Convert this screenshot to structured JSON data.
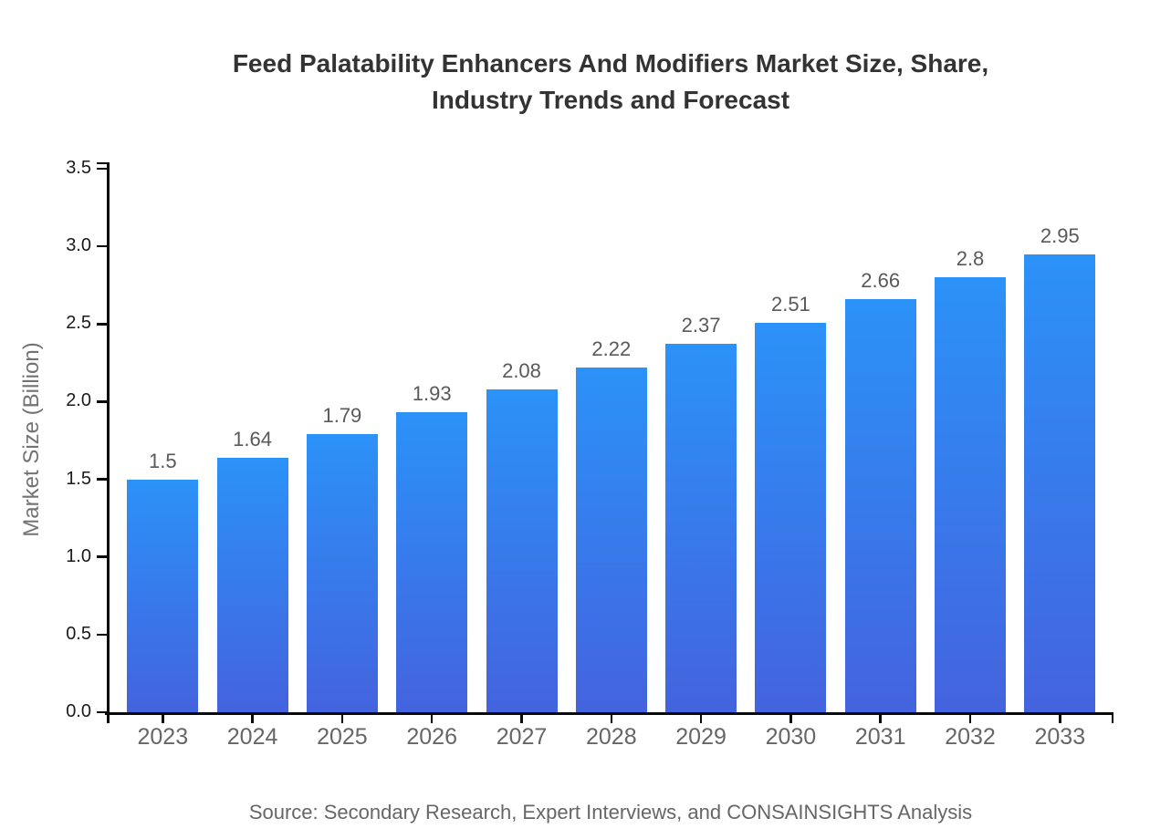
{
  "chart_data": {
    "type": "bar",
    "title_lines": {
      "0": "Feed Palatability Enhancers And Modifiers Market Size, Share,",
      "1": "Industry Trends and Forecast"
    },
    "title": "Feed Palatability Enhancers And Modifiers Market Size, Share, Industry Trends and Forecast",
    "categories": [
      "2023",
      "2024",
      "2025",
      "2026",
      "2027",
      "2028",
      "2029",
      "2030",
      "2031",
      "2032",
      "2033"
    ],
    "values": [
      1.5,
      1.64,
      1.79,
      1.93,
      2.08,
      2.22,
      2.37,
      2.51,
      2.66,
      2.8,
      2.95
    ],
    "value_labels": [
      "1.5",
      "1.64",
      "1.79",
      "1.93",
      "2.08",
      "2.22",
      "2.37",
      "2.51",
      "2.66",
      "2.8",
      "2.95"
    ],
    "xlabel": "",
    "ylabel": "Market Size (Billion)",
    "ylim": [
      0.0,
      3.5
    ],
    "ytick_labels": [
      "0.0",
      "0.5",
      "1.0",
      "1.5",
      "2.0",
      "2.5",
      "3.0",
      "3.5"
    ],
    "grid": false,
    "legend": null,
    "source": "Source: Secondary Research, Expert Interviews, and CONSAINSIGHTS Analysis",
    "colors": {
      "bar_gradient_top": "#2B92F8",
      "bar_gradient_bottom": "#4463DE",
      "axis": "#0a0a0a",
      "title": "#333333",
      "y_tick_label": "#1a1a1a",
      "x_tick_label": "#666666",
      "value_label": "#595959",
      "ylabel_color": "#737373",
      "source_color": "#666666",
      "background": "#ffffff"
    }
  }
}
